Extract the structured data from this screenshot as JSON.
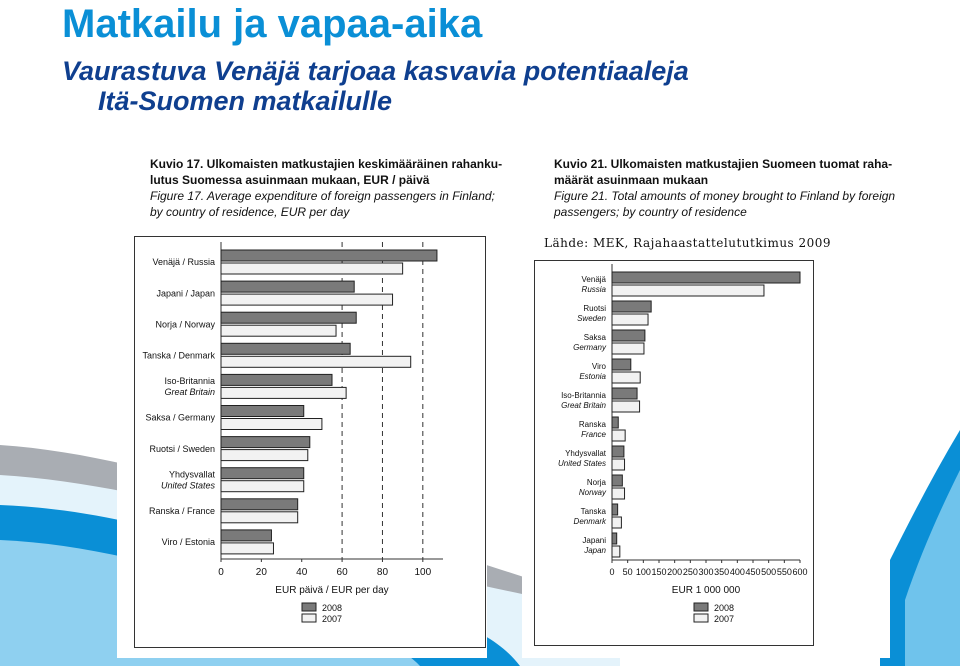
{
  "slide": {
    "title": "Matkailu ja vapaa-aika",
    "subtitle_line1": "Vaurastuva Venäjä tarjoaa kasvavia potentiaaleja",
    "subtitle_line2": "Itä-Suomen matkailulle",
    "source": "Lähde: MEK, Rajahaastattelututkimus 2009"
  },
  "colors": {
    "title": "#0a8fd6",
    "subtitle": "#0f3f8f",
    "bar_2008": "#7a7a7a",
    "bar_2007": "#f2f2f2",
    "wave_gray": "#a9adb3",
    "wave_blue": "#0a8fd6"
  },
  "chart_data": [
    {
      "type": "bar",
      "orientation": "horizontal",
      "caption": {
        "fi_line1": "Kuvio 17. Ulkomaisten matkustajien keskimääräinen rahanku-",
        "fi_line2": "lutus Suomessa asuinmaan mukaan, EUR / päivä",
        "en_line1": "Figure 17. Average expenditure of foreign passengers in Finland;",
        "en_line2": "by country of residence, EUR per day"
      },
      "categories": [
        [
          "Venäjä / Russia"
        ],
        [
          "Japani / Japan"
        ],
        [
          "Norja / Norway"
        ],
        [
          "Tanska / Denmark"
        ],
        [
          "Iso-Britannia",
          "Great Britain"
        ],
        [
          "Saksa / Germany"
        ],
        [
          "Ruotsi / Sweden"
        ],
        [
          "Yhdysvallat",
          "United States"
        ],
        [
          "Ranska / France"
        ],
        [
          "Viro / Estonia"
        ]
      ],
      "series": [
        {
          "name": "2008",
          "values": [
            107,
            66,
            67,
            64,
            55,
            41,
            44,
            41,
            38,
            25
          ]
        },
        {
          "name": "2007",
          "values": [
            90,
            85,
            57,
            94,
            62,
            50,
            43,
            41,
            38,
            26
          ]
        }
      ],
      "xlim": [
        0,
        110
      ],
      "xticks": [
        0,
        20,
        40,
        60,
        80,
        100
      ],
      "xlabel": "EUR päivä / EUR per day",
      "grid": "vertical dashed at 60, 80, 100",
      "legend": "bottom"
    },
    {
      "type": "bar",
      "orientation": "horizontal",
      "caption": {
        "fi_line1": "Kuvio 21. Ulkomaisten matkustajien Suomeen tuomat raha-",
        "fi_line2": "määrät asuinmaan mukaan",
        "en_line1": "Figure 21. Total amounts of money brought to Finland by foreign",
        "en_line2": "passengers; by country of residence"
      },
      "categories": [
        [
          "Venäjä",
          "Russia"
        ],
        [
          "Ruotsi",
          "Sweden"
        ],
        [
          "Saksa",
          "Germany"
        ],
        [
          "Viro",
          "Estonia"
        ],
        [
          "Iso-Britannia",
          "Great Britain"
        ],
        [
          "Ranska",
          "France"
        ],
        [
          "Yhdysvallat",
          "United States"
        ],
        [
          "Norja",
          "Norway"
        ],
        [
          "Tanska",
          "Denmark"
        ],
        [
          "Japani",
          "Japan"
        ]
      ],
      "series": [
        {
          "name": "2008",
          "values": [
            600,
            125,
            105,
            60,
            80,
            20,
            38,
            33,
            18,
            15
          ]
        },
        {
          "name": "2007",
          "values": [
            485,
            115,
            102,
            90,
            88,
            42,
            40,
            40,
            30,
            25
          ]
        }
      ],
      "xlim": [
        0,
        600
      ],
      "xticks": [
        0,
        50,
        100,
        150,
        200,
        250,
        300,
        350,
        400,
        450,
        500,
        550,
        600
      ],
      "xlabel": "EUR 1 000 000",
      "grid": "none",
      "legend": "bottom"
    }
  ]
}
